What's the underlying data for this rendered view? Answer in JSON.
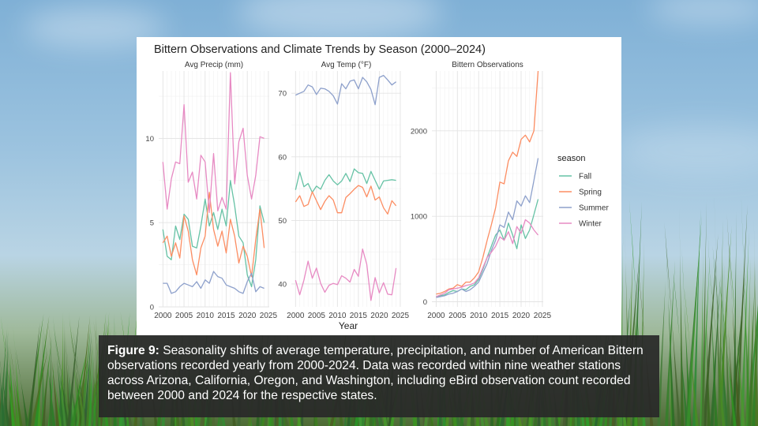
{
  "caption": {
    "label": "Figure 9:",
    "text": "Seasonality shifts of average temperature, precipitation, and number of American Bittern observations recorded yearly from 2000-2024. Data was recorded within nine weather stations across Arizona, California, Oregon, and Washington, including eBird observation count recorded between 2000 and 2024 for the respective states."
  },
  "colors": {
    "Fall": "#66c2a5",
    "Spring": "#fc8d62",
    "Summer": "#8da0cb",
    "Winter": "#e78ac3"
  },
  "chart_data": {
    "type": "line",
    "title": "Bittern Observations and Climate Trends by Season (2000–2024)",
    "xlabel": "Year",
    "legend": {
      "title": "season",
      "position": "right",
      "entries": [
        "Fall",
        "Spring",
        "Summer",
        "Winter"
      ]
    },
    "grid": true,
    "x": [
      2000,
      2001,
      2002,
      2003,
      2004,
      2005,
      2006,
      2007,
      2008,
      2009,
      2010,
      2011,
      2012,
      2013,
      2014,
      2015,
      2016,
      2017,
      2018,
      2019,
      2020,
      2021,
      2022,
      2023,
      2024
    ],
    "x_ticks": [
      2000,
      2005,
      2010,
      2015,
      2020,
      2025
    ],
    "panels": [
      {
        "name": "precip",
        "title": "Avg Precip (mm)",
        "ylim": [
          0,
          14
        ],
        "y_ticks": [
          0,
          5,
          10
        ],
        "series": [
          {
            "name": "Fall",
            "values": [
              4.6,
              3.0,
              2.8,
              4.8,
              4.0,
              5.5,
              5.2,
              3.6,
              3.5,
              4.8,
              6.4,
              4.8,
              5.6,
              4.6,
              5.8,
              4.8,
              7.5,
              6.0,
              4.2,
              3.8,
              1.9,
              1.2,
              2.8,
              6.0,
              5.0
            ]
          },
          {
            "name": "Spring",
            "values": [
              3.8,
              4.2,
              3.0,
              3.8,
              2.9,
              5.4,
              4.5,
              2.8,
              1.9,
              3.5,
              4.2,
              6.8,
              4.6,
              3.6,
              4.5,
              3.2,
              5.2,
              4.2,
              2.6,
              3.6,
              3.0,
              1.8,
              4.0,
              5.8,
              3.5
            ]
          },
          {
            "name": "Summer",
            "values": [
              1.4,
              1.4,
              0.8,
              0.9,
              1.2,
              1.4,
              1.3,
              1.2,
              1.5,
              1.1,
              1.6,
              1.4,
              2.1,
              1.8,
              1.7,
              1.3,
              1.2,
              1.1,
              0.9,
              0.8,
              1.5,
              2.0,
              0.9,
              1.2,
              1.1
            ]
          },
          {
            "name": "Winter",
            "values": [
              8.6,
              5.8,
              7.6,
              8.6,
              8.5,
              12.0,
              7.4,
              8.0,
              6.4,
              9.0,
              8.6,
              5.6,
              9.1,
              5.7,
              6.5,
              5.8,
              13.9,
              7.3,
              9.8,
              10.6,
              7.8,
              6.4,
              7.8,
              10.1,
              10.0
            ]
          }
        ]
      },
      {
        "name": "temp",
        "title": "Avg Temp (°F)",
        "ylim": [
          36.4,
          73.5
        ],
        "y_ticks": [
          40,
          50,
          60,
          70
        ],
        "series": [
          {
            "name": "Fall",
            "values": [
              54.8,
              57.6,
              55.3,
              55.8,
              54.4,
              55.4,
              54.9,
              56.3,
              57.2,
              56.2,
              55.6,
              56.2,
              57.4,
              56.1,
              58.1,
              57.5,
              57.4,
              55.8,
              57.7,
              56.3,
              54.9,
              56.2,
              56.3,
              56.4,
              56.3
            ]
          },
          {
            "name": "Spring",
            "values": [
              52.9,
              53.9,
              52.2,
              52.5,
              54.5,
              53.1,
              51.7,
              53.0,
              53.9,
              53.2,
              51.2,
              51.2,
              53.6,
              54.2,
              54.9,
              55.5,
              55.2,
              53.7,
              55.4,
              53.2,
              53.7,
              52.0,
              51.0,
              53.1,
              52.3
            ]
          },
          {
            "name": "Summer",
            "values": [
              69.7,
              70.0,
              70.3,
              71.3,
              71.0,
              69.8,
              70.8,
              70.7,
              70.3,
              69.6,
              68.3,
              71.5,
              70.7,
              71.9,
              72.1,
              70.7,
              72.5,
              71.8,
              70.6,
              68.2,
              72.5,
              72.8,
              72.1,
              71.3,
              71.8
            ]
          },
          {
            "name": "Winter",
            "values": [
              40.6,
              38.3,
              40.6,
              43.6,
              40.9,
              42.5,
              40.1,
              38.7,
              39.8,
              40.1,
              39.9,
              41.3,
              40.9,
              40.3,
              42.3,
              41.2,
              45.5,
              43.1,
              37.4,
              41.0,
              38.6,
              40.2,
              38.4,
              38.3,
              42.5
            ]
          }
        ]
      },
      {
        "name": "obs",
        "title": "Bittern Observations",
        "ylim": [
          -60,
          2700
        ],
        "y_ticks": [
          0,
          1000,
          2000
        ],
        "series": [
          {
            "name": "Fall",
            "values": [
              60,
              70,
              80,
              110,
              130,
              120,
              150,
              140,
              180,
              200,
              260,
              380,
              520,
              650,
              780,
              840,
              720,
              920,
              780,
              620,
              900,
              740,
              840,
              1020,
              1200
            ]
          },
          {
            "name": "Spring",
            "values": [
              90,
              100,
              120,
              150,
              160,
              200,
              180,
              230,
              230,
              280,
              350,
              520,
              720,
              900,
              1100,
              1400,
              1380,
              1650,
              1750,
              1700,
              1900,
              1950,
              1870,
              2000,
              2700
            ]
          },
          {
            "name": "Summer",
            "values": [
              50,
              60,
              70,
              90,
              100,
              120,
              150,
              120,
              140,
              180,
              230,
              340,
              450,
              600,
              720,
              900,
              870,
              1050,
              960,
              1180,
              1120,
              1240,
              1160,
              1420,
              1680
            ]
          },
          {
            "name": "Winter",
            "values": [
              60,
              80,
              100,
              140,
              150,
              160,
              170,
              190,
              200,
              220,
              280,
              400,
              520,
              580,
              650,
              760,
              720,
              820,
              680,
              880,
              800,
              960,
              920,
              840,
              780
            ]
          }
        ]
      }
    ]
  }
}
